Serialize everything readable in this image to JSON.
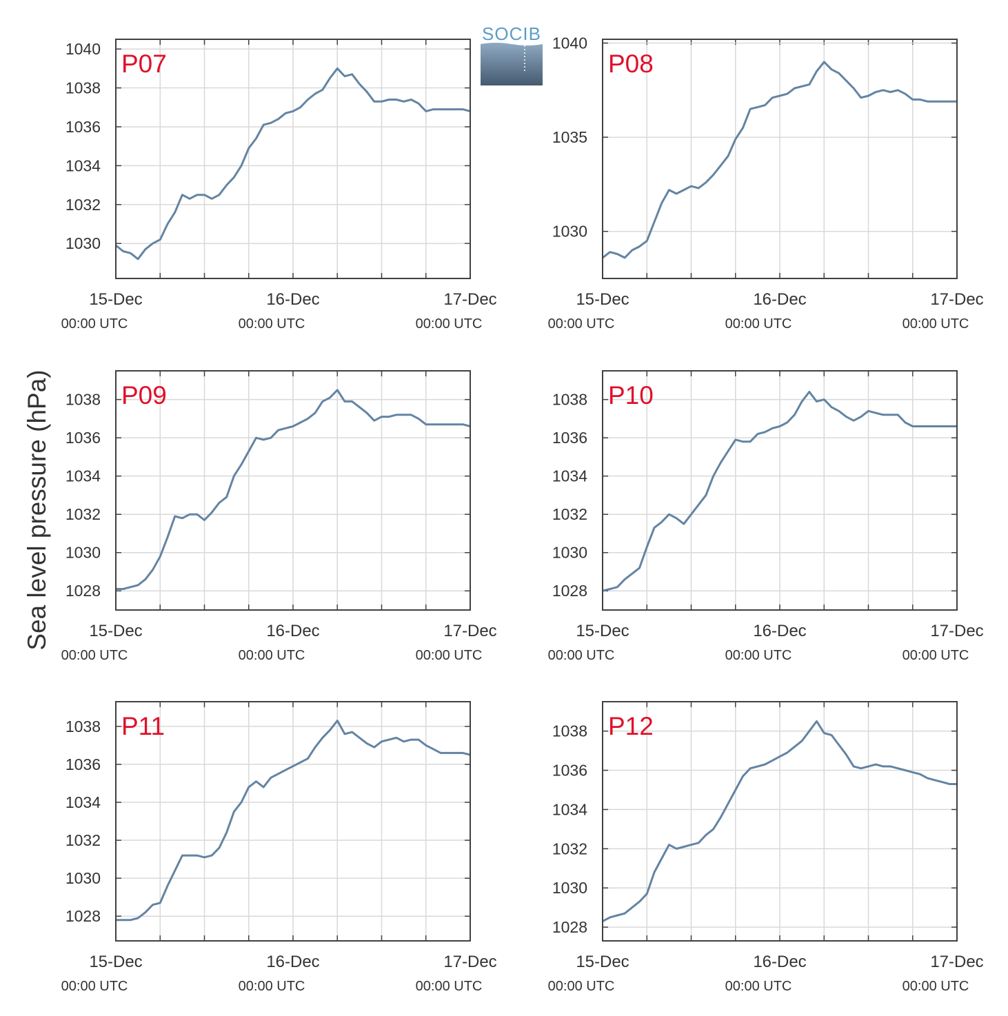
{
  "figure": {
    "ylabel": "Sea level pressure (hPa)",
    "logo_text": "SOCIB",
    "colors": {
      "line": "#6384a3",
      "panel_label": "#e0102a",
      "axis": "#404040",
      "grid": "#d9d9d9",
      "text": "#333333"
    }
  },
  "chart_data": [
    {
      "type": "line",
      "label": "P07",
      "x_ticks": [
        {
          "date": "15-Dec",
          "time": "00:00 UTC"
        },
        {
          "date": "16-Dec",
          "time": "00:00 UTC"
        },
        {
          "date": "17-Dec",
          "time": "00:00 UTC"
        }
      ],
      "xlim": [
        0,
        48
      ],
      "ylim": [
        1028.2,
        1040.5
      ],
      "yticks": [
        1030,
        1032,
        1034,
        1036,
        1038,
        1040
      ],
      "xunit": "hours since 15-Dec 00:00 UTC",
      "x": [
        0,
        1,
        2,
        3,
        4,
        5,
        6,
        7,
        8,
        9,
        10,
        11,
        12,
        13,
        14,
        15,
        16,
        17,
        18,
        19,
        20,
        21,
        22,
        23,
        24,
        25,
        26,
        27,
        28,
        29,
        30,
        31,
        32,
        33,
        34,
        35,
        36,
        37,
        38,
        39,
        40,
        41,
        42,
        43,
        44,
        45,
        46,
        47,
        48
      ],
      "y": [
        1029.9,
        1029.6,
        1029.5,
        1029.2,
        1029.7,
        1030.0,
        1030.2,
        1031.0,
        1031.6,
        1032.5,
        1032.3,
        1032.5,
        1032.5,
        1032.3,
        1032.5,
        1033.0,
        1033.4,
        1034.0,
        1034.9,
        1035.4,
        1036.1,
        1036.2,
        1036.4,
        1036.7,
        1036.8,
        1037.0,
        1037.4,
        1037.7,
        1037.9,
        1038.5,
        1039.0,
        1038.6,
        1038.7,
        1038.2,
        1037.8,
        1037.3,
        1037.3,
        1037.4,
        1037.4,
        1037.3,
        1037.4,
        1037.2,
        1036.8,
        1036.9,
        1036.9,
        1036.9,
        1036.9,
        1036.9,
        1036.8
      ]
    },
    {
      "type": "line",
      "label": "P08",
      "x_ticks": [
        {
          "date": "15-Dec",
          "time": "00:00 UTC"
        },
        {
          "date": "16-Dec",
          "time": "00:00 UTC"
        },
        {
          "date": "17-Dec",
          "time": "00:00 UTC"
        }
      ],
      "xlim": [
        0,
        48
      ],
      "ylim": [
        1027.5,
        1040.2
      ],
      "yticks": [
        1030,
        1035,
        1040
      ],
      "x": [
        0,
        1,
        2,
        3,
        4,
        5,
        6,
        7,
        8,
        9,
        10,
        11,
        12,
        13,
        14,
        15,
        16,
        17,
        18,
        19,
        20,
        21,
        22,
        23,
        24,
        25,
        26,
        27,
        28,
        29,
        30,
        31,
        32,
        33,
        34,
        35,
        36,
        37,
        38,
        39,
        40,
        41,
        42,
        43,
        44,
        45,
        46,
        47,
        48
      ],
      "y": [
        1028.6,
        1028.9,
        1028.8,
        1028.6,
        1029.0,
        1029.2,
        1029.5,
        1030.5,
        1031.5,
        1032.2,
        1032.0,
        1032.2,
        1032.4,
        1032.3,
        1032.6,
        1033.0,
        1033.5,
        1034.0,
        1034.9,
        1035.5,
        1036.5,
        1036.6,
        1036.7,
        1037.1,
        1037.2,
        1037.3,
        1037.6,
        1037.7,
        1037.8,
        1038.5,
        1039.0,
        1038.6,
        1038.4,
        1038.0,
        1037.6,
        1037.1,
        1037.2,
        1037.4,
        1037.5,
        1037.4,
        1037.5,
        1037.3,
        1037.0,
        1037.0,
        1036.9,
        1036.9,
        1036.9,
        1036.9,
        1036.9
      ]
    },
    {
      "type": "line",
      "label": "P09",
      "x_ticks": [
        {
          "date": "15-Dec",
          "time": "00:00 UTC"
        },
        {
          "date": "16-Dec",
          "time": "00:00 UTC"
        },
        {
          "date": "17-Dec",
          "time": "00:00 UTC"
        }
      ],
      "xlim": [
        0,
        48
      ],
      "ylim": [
        1027.0,
        1039.5
      ],
      "yticks": [
        1028,
        1030,
        1032,
        1034,
        1036,
        1038
      ],
      "x": [
        0,
        1,
        2,
        3,
        4,
        5,
        6,
        7,
        8,
        9,
        10,
        11,
        12,
        13,
        14,
        15,
        16,
        17,
        18,
        19,
        20,
        21,
        22,
        23,
        24,
        25,
        26,
        27,
        28,
        29,
        30,
        31,
        32,
        33,
        34,
        35,
        36,
        37,
        38,
        39,
        40,
        41,
        42,
        43,
        44,
        45,
        46,
        47,
        48
      ],
      "y": [
        1028.1,
        1028.1,
        1028.2,
        1028.3,
        1028.6,
        1029.1,
        1029.8,
        1030.8,
        1031.9,
        1031.8,
        1032.0,
        1032.0,
        1031.7,
        1032.1,
        1032.6,
        1032.9,
        1034.0,
        1034.6,
        1035.3,
        1036.0,
        1035.9,
        1036.0,
        1036.4,
        1036.5,
        1036.6,
        1036.8,
        1037.0,
        1037.3,
        1037.9,
        1038.1,
        1038.5,
        1037.9,
        1037.9,
        1037.6,
        1037.3,
        1036.9,
        1037.1,
        1037.1,
        1037.2,
        1037.2,
        1037.2,
        1037.0,
        1036.7,
        1036.7,
        1036.7,
        1036.7,
        1036.7,
        1036.7,
        1036.6
      ]
    },
    {
      "type": "line",
      "label": "P10",
      "x_ticks": [
        {
          "date": "15-Dec",
          "time": "00:00 UTC"
        },
        {
          "date": "16-Dec",
          "time": "00:00 UTC"
        },
        {
          "date": "17-Dec",
          "time": "00:00 UTC"
        }
      ],
      "xlim": [
        0,
        48
      ],
      "ylim": [
        1027.0,
        1039.5
      ],
      "yticks": [
        1028,
        1030,
        1032,
        1034,
        1036,
        1038
      ],
      "x": [
        0,
        1,
        2,
        3,
        4,
        5,
        6,
        7,
        8,
        9,
        10,
        11,
        12,
        13,
        14,
        15,
        16,
        17,
        18,
        19,
        20,
        21,
        22,
        23,
        24,
        25,
        26,
        27,
        28,
        29,
        30,
        31,
        32,
        33,
        34,
        35,
        36,
        37,
        38,
        39,
        40,
        41,
        42,
        43,
        44,
        45,
        46,
        47,
        48
      ],
      "y": [
        1028.0,
        1028.1,
        1028.2,
        1028.6,
        1028.9,
        1029.2,
        1030.3,
        1031.3,
        1031.6,
        1032.0,
        1031.8,
        1031.5,
        1032.0,
        1032.5,
        1033.0,
        1034.0,
        1034.7,
        1035.3,
        1035.9,
        1035.8,
        1035.8,
        1036.2,
        1036.3,
        1036.5,
        1036.6,
        1036.8,
        1037.2,
        1037.9,
        1038.4,
        1037.9,
        1038.0,
        1037.6,
        1037.4,
        1037.1,
        1036.9,
        1037.1,
        1037.4,
        1037.3,
        1037.2,
        1037.2,
        1037.2,
        1036.8,
        1036.6,
        1036.6,
        1036.6,
        1036.6,
        1036.6,
        1036.6,
        1036.6
      ]
    },
    {
      "type": "line",
      "label": "P11",
      "x_ticks": [
        {
          "date": "15-Dec",
          "time": "00:00 UTC"
        },
        {
          "date": "16-Dec",
          "time": "00:00 UTC"
        },
        {
          "date": "17-Dec",
          "time": "00:00 UTC"
        }
      ],
      "xlim": [
        0,
        48
      ],
      "ylim": [
        1026.7,
        1039.3
      ],
      "yticks": [
        1028,
        1030,
        1032,
        1034,
        1036,
        1038
      ],
      "x": [
        0,
        1,
        2,
        3,
        4,
        5,
        6,
        7,
        8,
        9,
        10,
        11,
        12,
        13,
        14,
        15,
        16,
        17,
        18,
        19,
        20,
        21,
        22,
        23,
        24,
        25,
        26,
        27,
        28,
        29,
        30,
        31,
        32,
        33,
        34,
        35,
        36,
        37,
        38,
        39,
        40,
        41,
        42,
        43,
        44,
        45,
        46,
        47,
        48
      ],
      "y": [
        1027.8,
        1027.8,
        1027.8,
        1027.9,
        1028.2,
        1028.6,
        1028.7,
        1029.6,
        1030.4,
        1031.2,
        1031.2,
        1031.2,
        1031.1,
        1031.2,
        1031.6,
        1032.4,
        1033.5,
        1034.0,
        1034.8,
        1035.1,
        1034.8,
        1035.3,
        1035.5,
        1035.7,
        1035.9,
        1036.1,
        1036.3,
        1036.9,
        1037.4,
        1037.8,
        1038.3,
        1037.6,
        1037.7,
        1037.4,
        1037.1,
        1036.9,
        1037.2,
        1037.3,
        1037.4,
        1037.2,
        1037.3,
        1037.3,
        1037.0,
        1036.8,
        1036.6,
        1036.6,
        1036.6,
        1036.6,
        1036.5
      ]
    },
    {
      "type": "line",
      "label": "P12",
      "x_ticks": [
        {
          "date": "15-Dec",
          "time": "00:00 UTC"
        },
        {
          "date": "16-Dec",
          "time": "00:00 UTC"
        },
        {
          "date": "17-Dec",
          "time": "00:00 UTC"
        }
      ],
      "xlim": [
        0,
        48
      ],
      "ylim": [
        1027.3,
        1039.5
      ],
      "yticks": [
        1028,
        1030,
        1032,
        1034,
        1036,
        1038
      ],
      "x": [
        0,
        1,
        2,
        3,
        4,
        5,
        6,
        7,
        8,
        9,
        10,
        11,
        12,
        13,
        14,
        15,
        16,
        17,
        18,
        19,
        20,
        21,
        22,
        23,
        24,
        25,
        26,
        27,
        28,
        29,
        30,
        31,
        32,
        33,
        34,
        35,
        36,
        37,
        38,
        39,
        40,
        41,
        42,
        43,
        44,
        45,
        46,
        47,
        48
      ],
      "y": [
        1028.3,
        1028.5,
        1028.6,
        1028.7,
        1029.0,
        1029.3,
        1029.7,
        1030.8,
        1031.5,
        1032.2,
        1032.0,
        1032.1,
        1032.2,
        1032.3,
        1032.7,
        1033.0,
        1033.6,
        1034.3,
        1035.0,
        1035.7,
        1036.1,
        1036.2,
        1036.3,
        1036.5,
        1036.7,
        1036.9,
        1037.2,
        1037.5,
        1038.0,
        1038.5,
        1037.9,
        1037.8,
        1037.3,
        1036.8,
        1036.2,
        1036.1,
        1036.2,
        1036.3,
        1036.2,
        1036.2,
        1036.1,
        1036.0,
        1035.9,
        1035.8,
        1035.6,
        1035.5,
        1035.4,
        1035.3,
        1035.3
      ]
    }
  ]
}
